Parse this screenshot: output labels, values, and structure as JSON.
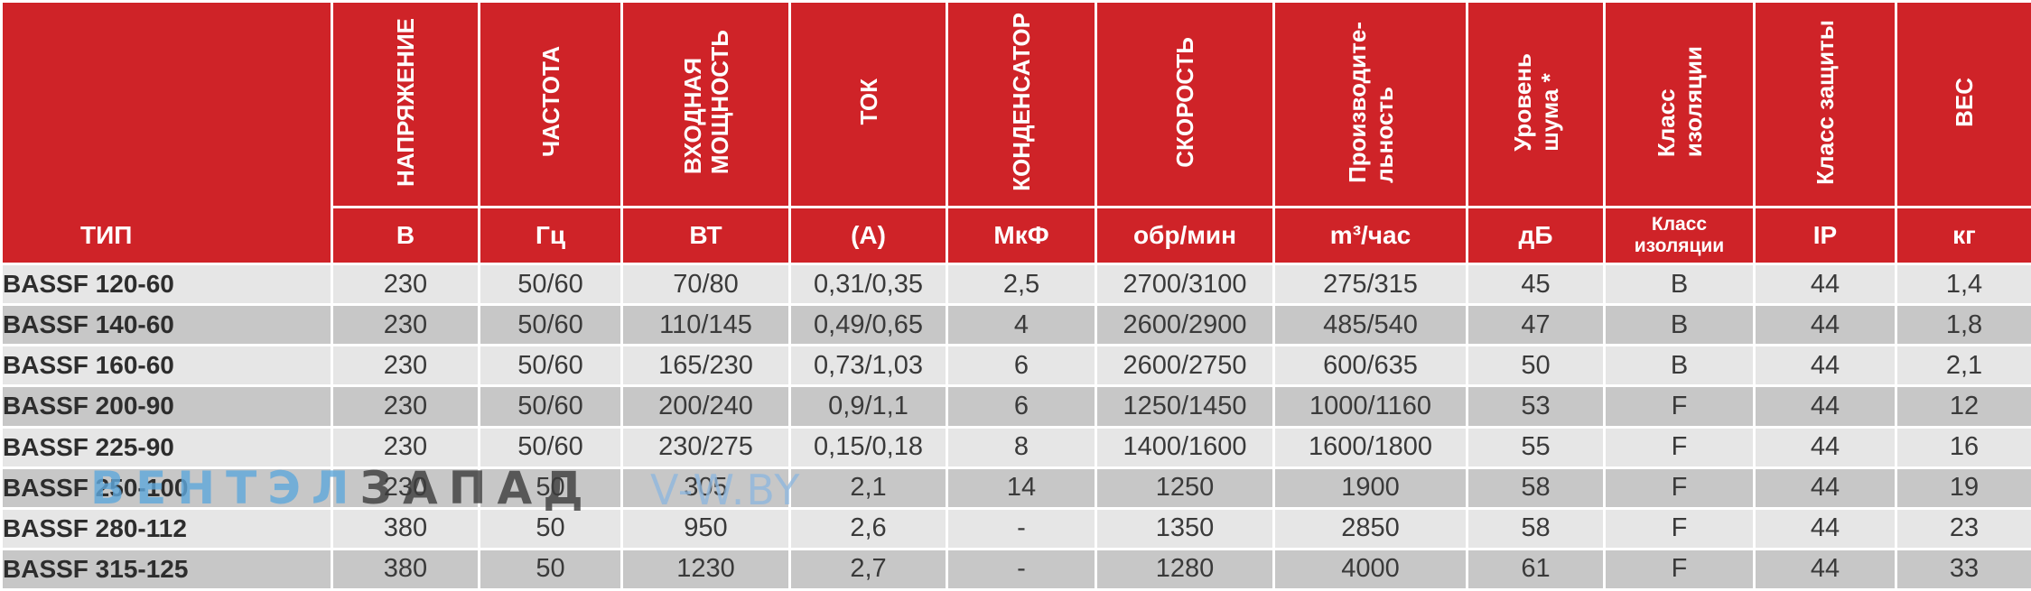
{
  "headers": [
    {
      "label": "ТИП",
      "unit": ""
    },
    {
      "label": "НАПРЯЖЕНИЕ",
      "unit": "В"
    },
    {
      "label": "ЧАСТОТА",
      "unit": "Гц"
    },
    {
      "label": "ВХОДНАЯ\nМОЩНОСТЬ",
      "unit": "ВТ"
    },
    {
      "label": "ТОК",
      "unit": "(А)"
    },
    {
      "label": "КОНДЕНСАТОР",
      "unit": "МкФ"
    },
    {
      "label": "СКОРОСТЬ",
      "unit": "обр/мин"
    },
    {
      "label": "Производите-\nльность",
      "unit": "m³/час"
    },
    {
      "label": "Уровень\nшума *",
      "unit": "дБ"
    },
    {
      "label": "Класс\nизоляции",
      "unit": "Класс изоляции"
    },
    {
      "label": "Класс защиты",
      "unit": "IP"
    },
    {
      "label": "ВЕС",
      "unit": "кг"
    }
  ],
  "rows": [
    [
      "BASSF 120-60",
      "230",
      "50/60",
      "70/80",
      "0,31/0,35",
      "2,5",
      "2700/3100",
      "275/315",
      "45",
      "B",
      "44",
      "1,4"
    ],
    [
      "BASSF 140-60",
      "230",
      "50/60",
      "110/145",
      "0,49/0,65",
      "4",
      "2600/2900",
      "485/540",
      "47",
      "B",
      "44",
      "1,8"
    ],
    [
      "BASSF 160-60",
      "230",
      "50/60",
      "165/230",
      "0,73/1,03",
      "6",
      "2600/2750",
      "600/635",
      "50",
      "B",
      "44",
      "2,1"
    ],
    [
      "BASSF 200-90",
      "230",
      "50/60",
      "200/240",
      "0,9/1,1",
      "6",
      "1250/1450",
      "1000/1160",
      "53",
      "F",
      "44",
      "12"
    ],
    [
      "BASSF 225-90",
      "230",
      "50/60",
      "230/275",
      "0,15/0,18",
      "8",
      "1400/1600",
      "1600/1800",
      "55",
      "F",
      "44",
      "16"
    ],
    [
      "BASSF 250-100",
      "230",
      "50",
      "305",
      "2,1",
      "14",
      "1250",
      "1900",
      "58",
      "F",
      "44",
      "19"
    ],
    [
      "BASSF 280-112",
      "380",
      "50",
      "950",
      "2,6",
      "-",
      "1350",
      "2850",
      "58",
      "F",
      "44",
      "23"
    ],
    [
      "BASSF 315-125",
      "380",
      "50",
      "1230",
      "2,7",
      "-",
      "1280",
      "4000",
      "61",
      "F",
      "44",
      "33"
    ]
  ],
  "watermark": {
    "part1": "ВЕНТЭЛ",
    "part2": "ЗАПАД",
    "part3": "V-W.BY"
  },
  "colors": {
    "header_bg": "#cf2328",
    "row_light": "#e6e6e6",
    "row_dark": "#c7c7c7",
    "watermark_blue": "#5fa8dc"
  }
}
